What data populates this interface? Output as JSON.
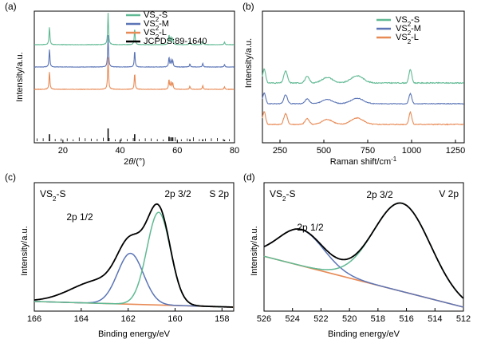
{
  "chart_data": [
    {
      "type": "line",
      "panel_label": "(a)",
      "xlabel_prefix": "2",
      "xlabel_italic": "θ",
      "xlabel_suffix": "/(°)",
      "ylabel": "Intensity/a.u.",
      "xlim": [
        10,
        80
      ],
      "xticks": [
        20,
        40,
        60,
        80
      ],
      "reference_lines": [
        15.3,
        35.8,
        45.1,
        57.1,
        57.8,
        58.4,
        64.4,
        68.9,
        76.5
      ],
      "reference_heights": [
        0.55,
        1.0,
        0.55,
        0.35,
        0.3,
        0.3,
        0.15,
        0.15,
        0.1
      ],
      "peaks": [
        {
          "x": 15.3,
          "h": 0.55
        },
        {
          "x": 35.8,
          "h": 1.0
        },
        {
          "x": 45.1,
          "h": 0.5
        },
        {
          "x": 57.1,
          "h": 0.3
        },
        {
          "x": 57.8,
          "h": 0.22
        },
        {
          "x": 58.4,
          "h": 0.2
        },
        {
          "x": 64.4,
          "h": 0.1
        },
        {
          "x": 68.9,
          "h": 0.12
        },
        {
          "x": 76.5,
          "h": 0.08
        }
      ],
      "series": [
        {
          "name_main": "VS",
          "name_sub": "2",
          "name_suffix": "-S",
          "color": "#5fb993",
          "offset": 0.0
        },
        {
          "name_main": "VS",
          "name_sub": "2",
          "name_suffix": "-M",
          "color": "#5a74b6",
          "offset": 1.0
        },
        {
          "name_main": "VS",
          "name_sub": "2",
          "name_suffix": "-L",
          "color": "#e88a55",
          "offset": 2.0
        }
      ],
      "reference_name": "JCPDS:89-1640",
      "reference_color": "#000000",
      "legend": "top-right"
    },
    {
      "type": "line",
      "panel_label": "(b)",
      "xlabel_main": "Raman shift/cm",
      "xlabel_sup": "-1",
      "ylabel": "Intensity/a.u.",
      "xlim": [
        150,
        1300
      ],
      "xticks": [
        250,
        500,
        750,
        1000,
        1250
      ],
      "peaks": [
        {
          "x": 160,
          "h": 0.9,
          "w": 8
        },
        {
          "x": 282,
          "h": 0.75,
          "w": 10
        },
        {
          "x": 405,
          "h": 0.4,
          "w": 12
        },
        {
          "x": 520,
          "h": 0.35,
          "w": 30
        },
        {
          "x": 690,
          "h": 0.45,
          "w": 35
        },
        {
          "x": 993,
          "h": 0.85,
          "w": 8
        }
      ],
      "series": [
        {
          "name_main": "VS",
          "name_sub": "2",
          "name_suffix": "-S",
          "color": "#5fb993"
        },
        {
          "name_main": "VS",
          "name_sub": "2",
          "name_suffix": "-M",
          "color": "#5a74b6"
        },
        {
          "name_main": "VS",
          "name_sub": "2",
          "name_suffix": "-L",
          "color": "#e88a55"
        }
      ],
      "legend": "top-right"
    },
    {
      "type": "line",
      "panel_label": "(c)",
      "sample_main": "VS",
      "sample_sub": "2",
      "sample_suffix": "-S",
      "region": "S 2p",
      "xlabel": "Binding energy/eV",
      "ylabel": "Intensity/a.u.",
      "xlim": [
        166,
        157.5
      ],
      "xticks": [
        166,
        164,
        162,
        160,
        158
      ],
      "baseline": {
        "start": 0.05,
        "end": 0.0,
        "color": "#e88a55"
      },
      "components": [
        {
          "label": "2p 1/2",
          "center": 161.9,
          "height": 0.45,
          "width": 0.55,
          "color": "#5a74b6"
        },
        {
          "label": "2p 3/2",
          "center": 160.7,
          "height": 0.82,
          "width": 0.5,
          "color": "#5fb993"
        }
      ],
      "broad_shoulder": {
        "center": 163.2,
        "height": 0.2,
        "width": 1.2
      },
      "envelope_color": "#000000"
    },
    {
      "type": "line",
      "panel_label": "(d)",
      "sample_main": "VS",
      "sample_sub": "2",
      "sample_suffix": "-S",
      "region": "V 2p",
      "xlabel": "Binding energy/eV",
      "ylabel": "Intensity/a.u.",
      "xlim": [
        526,
        512
      ],
      "xticks": [
        526,
        524,
        522,
        520,
        518,
        516,
        514,
        512
      ],
      "baseline": {
        "start": 0.45,
        "end": 0.0,
        "color": "#e88a55"
      },
      "components": [
        {
          "label": "2p 1/2",
          "center": 523.4,
          "height": 0.32,
          "width": 1.6,
          "color": "#5a74b6"
        },
        {
          "label": "2p 3/2",
          "center": 516.3,
          "height": 0.78,
          "width": 2.0,
          "color": "#5fb993"
        }
      ],
      "envelope_color": "#000000"
    }
  ]
}
